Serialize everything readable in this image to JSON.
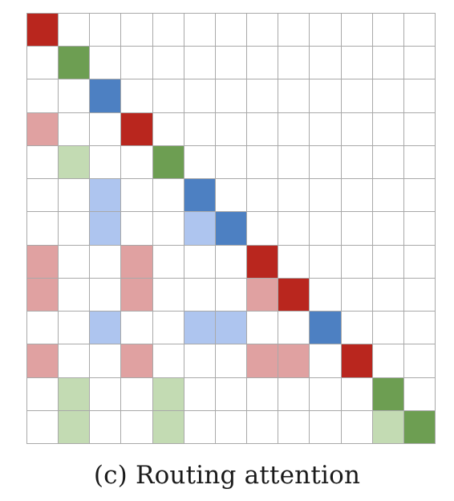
{
  "caption": "(c) Routing attention",
  "colors": {
    "R": "#b9261e",
    "r": "#e0a1a1",
    "G": "#6d9e52",
    "g": "#c3dbb3",
    "B": "#4d80c2",
    "b": "#aec5ef",
    ".": "#ffffff"
  },
  "color_names": {
    "R": "red",
    "r": "light-red",
    "G": "green",
    "g": "light-green",
    "B": "blue",
    "b": "light-blue",
    ".": "empty"
  },
  "matrix": [
    "R............",
    ".G...........",
    "..B..........",
    "r..R.........",
    ".g..G........",
    "..b..B.......",
    "..b..bB......",
    "r..r...R.....",
    "r..r...rR....",
    "..b..bb..B...",
    "r..r...rr.R..",
    ".g..g......G.",
    ".g..g......gG"
  ]
}
